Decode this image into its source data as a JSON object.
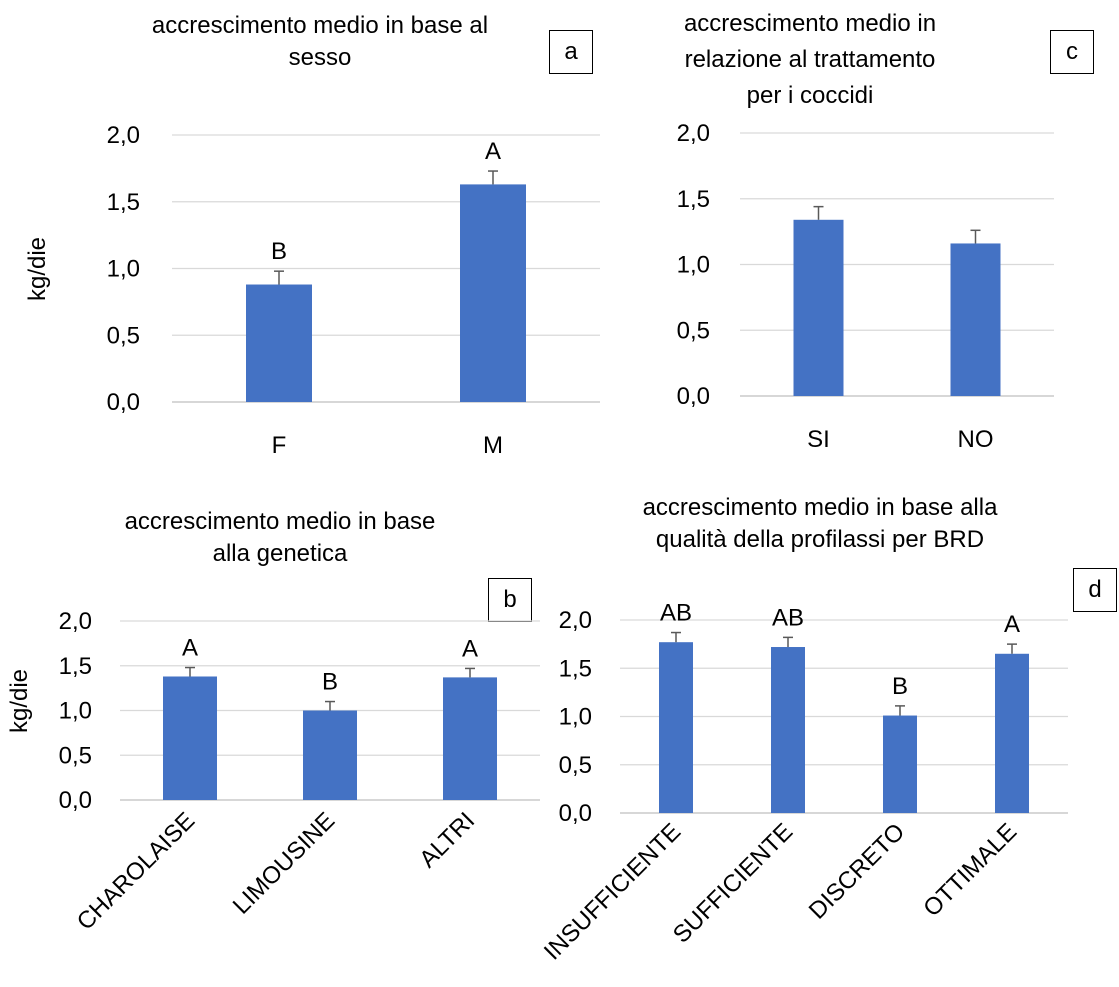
{
  "style": {
    "bar_color": "#4472C4",
    "grid_color": "#d9d9d9",
    "axis_color": "#bfbfbf",
    "error_color": "#595959"
  },
  "chart_data": [
    {
      "id": "a",
      "type": "bar",
      "panel_label": "a",
      "title": "accrescimento medio in base al sesso",
      "title_lines": [
        "accrescimento medio in base al",
        "sesso"
      ],
      "ylabel": "kg/die",
      "categories": [
        "F",
        "M"
      ],
      "values": [
        0.88,
        1.63
      ],
      "errors": [
        0.1,
        0.1
      ],
      "significance_labels": [
        "B",
        "A"
      ],
      "ylim": [
        0,
        2
      ],
      "yticks": [
        "0,0",
        "0,5",
        "1,0",
        "1,5",
        "2,0"
      ],
      "grid": true,
      "rotate_x_labels": false
    },
    {
      "id": "c",
      "type": "bar",
      "panel_label": "c",
      "title": "accrescimento medio in relazione al trattamento per i coccidi",
      "title_lines": [
        "accrescimento medio in",
        "relazione al trattamento",
        "per i coccidi"
      ],
      "ylabel": "",
      "categories": [
        "SI",
        "NO"
      ],
      "values": [
        1.34,
        1.16
      ],
      "errors": [
        0.1,
        0.1
      ],
      "significance_labels": [
        "",
        ""
      ],
      "ylim": [
        0,
        2
      ],
      "yticks": [
        "0,0",
        "0,5",
        "1,0",
        "1,5",
        "2,0"
      ],
      "grid": true,
      "rotate_x_labels": false
    },
    {
      "id": "b",
      "type": "bar",
      "panel_label": "b",
      "title": "accrescimento medio in base alla genetica",
      "title_lines": [
        "accrescimento medio in base",
        "alla genetica"
      ],
      "ylabel": "kg/die",
      "categories": [
        "CHAROLAISE",
        "LIMOUSINE",
        "ALTRI"
      ],
      "values": [
        1.38,
        1.0,
        1.37
      ],
      "errors": [
        0.1,
        0.1,
        0.1
      ],
      "significance_labels": [
        "A",
        "B",
        "A"
      ],
      "ylim": [
        0,
        2
      ],
      "yticks": [
        "0,0",
        "0,5",
        "1,0",
        "1,5",
        "2,0"
      ],
      "grid": true,
      "rotate_x_labels": true
    },
    {
      "id": "d",
      "type": "bar",
      "panel_label": "d",
      "title": "accrescimento medio in base alla qualità della profilassi per BRD",
      "title_lines": [
        "accrescimento medio in base alla",
        "qualità della profilassi per BRD"
      ],
      "ylabel": "",
      "categories": [
        "INSUFFICIENTE",
        "SUFFICIENTE",
        "DISCRETO",
        "OTTIMALE"
      ],
      "values": [
        1.77,
        1.72,
        1.01,
        1.65
      ],
      "errors": [
        0.1,
        0.1,
        0.1,
        0.1
      ],
      "significance_labels": [
        "AB",
        "AB",
        "B",
        "A"
      ],
      "ylim": [
        0,
        2
      ],
      "yticks": [
        "0,0",
        "0,5",
        "1,0",
        "1,5",
        "2,0"
      ],
      "grid": true,
      "rotate_x_labels": true
    }
  ]
}
